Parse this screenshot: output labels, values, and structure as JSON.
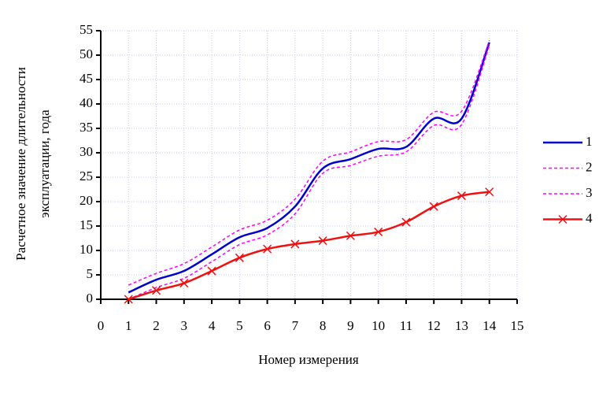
{
  "chart_data": {
    "type": "line",
    "y_label": [
      "Расчетное значение длительности",
      "эксплуатации, года"
    ],
    "x_label": "Номер измерения",
    "x": [
      1,
      2,
      3,
      4,
      5,
      6,
      7,
      8,
      9,
      10,
      11,
      12,
      13,
      14
    ],
    "series": [
      {
        "name": "1",
        "color": "#0000cc",
        "dash": false,
        "marker": false,
        "values": [
          1.4,
          4,
          5.8,
          9.2,
          12.7,
          14.6,
          19,
          26.8,
          28.7,
          30.8,
          31.2,
          37,
          37,
          52.6
        ]
      },
      {
        "name": "2",
        "color": "#ff00ff",
        "dash": true,
        "marker": false,
        "values": [
          2.9,
          5.3,
          7.3,
          10.7,
          14.2,
          16.2,
          20.5,
          28.3,
          30.2,
          32.3,
          32.7,
          38.3,
          38.5,
          53
        ]
      },
      {
        "name": "3",
        "color": "#ff00ff",
        "dash": true,
        "marker": false,
        "values": [
          0,
          2.4,
          4.3,
          7.7,
          11.2,
          13.2,
          17.5,
          25.8,
          27.4,
          29.3,
          30.2,
          35.6,
          35.8,
          52
        ]
      },
      {
        "name": "4",
        "color": "#ee1111",
        "dash": false,
        "marker": true,
        "values": [
          0,
          1.8,
          3.3,
          5.8,
          8.5,
          10.3,
          11.3,
          12,
          13,
          13.8,
          15.8,
          19,
          21.2,
          22
        ]
      }
    ],
    "xlim": [
      0,
      15
    ],
    "xticks": [
      0,
      1,
      2,
      3,
      4,
      5,
      6,
      7,
      8,
      9,
      10,
      11,
      12,
      13,
      14,
      15
    ],
    "ylim": [
      0,
      55
    ],
    "yticks": [
      0,
      5,
      10,
      15,
      20,
      25,
      30,
      35,
      40,
      45,
      50,
      55
    ],
    "grid": true,
    "legend": "right"
  }
}
